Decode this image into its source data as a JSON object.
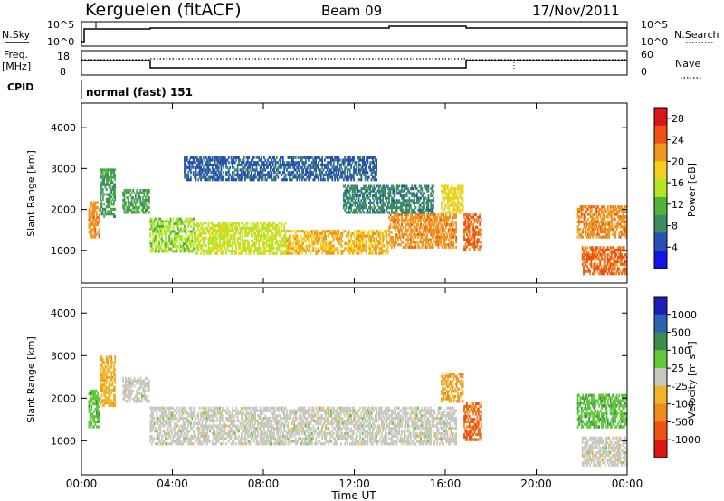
{
  "header": {
    "station": "Kerguelen (fitACF)",
    "beam": "Beam 09",
    "date": "17/Nov/2011"
  },
  "panels": {
    "nsky_label": "N.Sky",
    "nsky_ticks": [
      "10^5",
      "10^0"
    ],
    "nsearch_label": "N.Search",
    "nsearch_ticks": [
      "10^5",
      "10^0"
    ],
    "freq_label_1": "Freq.",
    "freq_label_2": "[MHz]",
    "freq_ticks": [
      "18",
      "8"
    ],
    "nave_label": "Nave",
    "nave_ticks": [
      "60",
      "0"
    ],
    "cpid_label": "CPID",
    "cpid_value": "normal (fast) 151"
  },
  "colors": {
    "power": [
      "#1414e6",
      "#2850b4",
      "#3c8c64",
      "#50b43c",
      "#b4e628",
      "#f0d21e",
      "#f0961e",
      "#f05014",
      "#dc1414"
    ],
    "velocity": [
      "#1e1eb4",
      "#2864b4",
      "#3c8c50",
      "#64c83c",
      "#c8c8c0",
      "#f0b428",
      "#f08c1e",
      "#f05014",
      "#dc1414"
    ]
  },
  "chart_data": [
    {
      "type": "heatmap",
      "title": "",
      "ylabel": "Slant Range [km]",
      "xlabel": "",
      "ylim": [
        200,
        4600
      ],
      "xlim_hours": [
        0,
        24
      ],
      "yticks": [
        "1000",
        "2000",
        "3000",
        "4000"
      ],
      "colorbar": {
        "label": "Power [dB]",
        "ticks": [
          "4",
          "8",
          "12",
          "16",
          "20",
          "24",
          "28"
        ],
        "range": [
          0,
          30
        ]
      },
      "regions": [
        {
          "t0": 0.3,
          "t1": 0.8,
          "r0": 1300,
          "r1": 2200,
          "value": 22
        },
        {
          "t0": 0.8,
          "t1": 1.5,
          "r0": 1800,
          "r1": 3000,
          "value": 10
        },
        {
          "t0": 1.8,
          "t1": 3.0,
          "r0": 1900,
          "r1": 2500,
          "value": 10
        },
        {
          "t0": 3.0,
          "t1": 5.0,
          "r0": 950,
          "r1": 1800,
          "value": 14
        },
        {
          "t0": 5.0,
          "t1": 9.0,
          "r0": 900,
          "r1": 1700,
          "value": 16
        },
        {
          "t0": 9.0,
          "t1": 13.5,
          "r0": 900,
          "r1": 1500,
          "value": 20
        },
        {
          "t0": 13.5,
          "t1": 16.5,
          "r0": 1050,
          "r1": 1900,
          "value": 22
        },
        {
          "t0": 15.8,
          "t1": 16.8,
          "r0": 1900,
          "r1": 2600,
          "value": 18
        },
        {
          "t0": 16.8,
          "t1": 17.6,
          "r0": 1000,
          "r1": 1900,
          "value": 24
        },
        {
          "t0": 21.8,
          "t1": 24.0,
          "r0": 1300,
          "r1": 2100,
          "value": 22
        },
        {
          "t0": 22.0,
          "t1": 24.0,
          "r0": 400,
          "r1": 1100,
          "value": 24
        },
        {
          "t0": 4.5,
          "t1": 13.0,
          "r0": 2700,
          "r1": 3300,
          "value": 6
        },
        {
          "t0": 11.5,
          "t1": 15.5,
          "r0": 1900,
          "r1": 2600,
          "value": 8
        }
      ]
    },
    {
      "type": "heatmap",
      "title": "",
      "ylabel": "Slant Range [km]",
      "xlabel": "Time UT",
      "ylim": [
        200,
        4600
      ],
      "xlim_hours": [
        0,
        24
      ],
      "xticks": [
        "00:00",
        "04:00",
        "08:00",
        "12:00",
        "16:00",
        "20:00",
        "00:00"
      ],
      "yticks": [
        "1000",
        "2000",
        "3000",
        "4000"
      ],
      "colorbar": {
        "label": "Velocity [m s⁻¹]",
        "ticks": [
          "1000",
          "500",
          "100",
          "25",
          "-25",
          "-100",
          "-500",
          "-1000"
        ],
        "range": [
          -1200,
          1200
        ]
      },
      "regions": [
        {
          "t0": 0.3,
          "t1": 0.8,
          "r0": 1300,
          "r1": 2200,
          "value": 300
        },
        {
          "t0": 0.8,
          "t1": 1.5,
          "r0": 1800,
          "r1": 3000,
          "value": -300
        },
        {
          "t0": 1.8,
          "t1": 3.0,
          "r0": 1900,
          "r1": 2500,
          "value": 0
        },
        {
          "t0": 3.0,
          "t1": 16.5,
          "r0": 900,
          "r1": 1800,
          "value": 0
        },
        {
          "t0": 15.8,
          "t1": 16.8,
          "r0": 1900,
          "r1": 2600,
          "value": -400
        },
        {
          "t0": 16.8,
          "t1": 17.6,
          "r0": 1000,
          "r1": 1900,
          "value": -700
        },
        {
          "t0": 21.8,
          "t1": 24.0,
          "r0": 1300,
          "r1": 2100,
          "value": 300
        },
        {
          "t0": 22.0,
          "t1": 24.0,
          "r0": 400,
          "r1": 1100,
          "value": 0
        }
      ]
    }
  ]
}
